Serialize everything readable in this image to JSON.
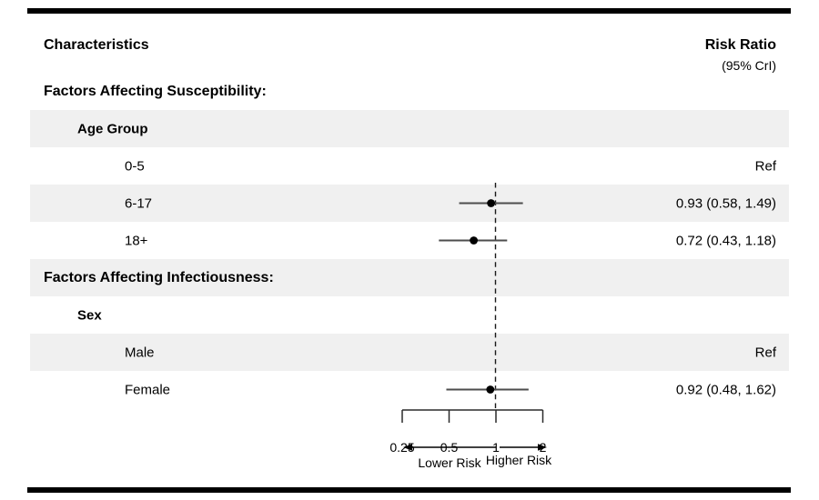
{
  "figure": {
    "left_column_header": "Characteristics",
    "right_column_header": "Risk Ratio",
    "right_column_subheader": "(95% CrI)"
  },
  "rows": [
    {
      "label": "Factors Affecting Susceptibility:",
      "indent": 0,
      "bold": true,
      "shaded": false,
      "value": ""
    },
    {
      "label": "Age Group",
      "indent": 1,
      "bold": true,
      "shaded": true,
      "value": ""
    },
    {
      "label": "0-5",
      "indent": 2,
      "bold": false,
      "shaded": false,
      "value": "Ref"
    },
    {
      "label": "6-17",
      "indent": 2,
      "bold": false,
      "shaded": true,
      "value": "0.93 (0.58, 1.49)"
    },
    {
      "label": "18+",
      "indent": 2,
      "bold": false,
      "shaded": false,
      "value": "0.72 (0.43, 1.18)"
    },
    {
      "label": "Factors Affecting Infectiousness:",
      "indent": 0,
      "bold": true,
      "shaded": true,
      "value": ""
    },
    {
      "label": "Sex",
      "indent": 1,
      "bold": true,
      "shaded": false,
      "value": ""
    },
    {
      "label": "Male",
      "indent": 2,
      "bold": false,
      "shaded": true,
      "value": "Ref"
    },
    {
      "label": "Female",
      "indent": 2,
      "bold": false,
      "shaded": false,
      "value": "0.92 (0.48, 1.62)"
    }
  ],
  "chart_data": {
    "type": "scatter",
    "variant": "forest_plot",
    "x_scale": "log2",
    "xlim": [
      0.25,
      2
    ],
    "x_ticks": [
      0.25,
      0.5,
      1,
      2
    ],
    "x_tick_labels": [
      "0.25",
      "0.5",
      "1",
      "2"
    ],
    "reference_line": 1,
    "direction_labels": {
      "left": "Lower Risk",
      "right": "Higher Risk"
    },
    "series": [
      {
        "name": "6-17",
        "estimate": 0.93,
        "ci_low": 0.58,
        "ci_high": 1.49
      },
      {
        "name": "18+",
        "estimate": 0.72,
        "ci_low": 0.43,
        "ci_high": 1.18
      },
      {
        "name": "Female",
        "estimate": 0.92,
        "ci_low": 0.48,
        "ci_high": 1.62
      }
    ]
  },
  "colors": {
    "stripe": "#f0f0f0",
    "marker": "#000000",
    "ci_line": "#4d4d4d",
    "axis": "#2a2a2a",
    "reference_line": "#1a1a1a",
    "rule": "#000000",
    "text": "#000000"
  }
}
